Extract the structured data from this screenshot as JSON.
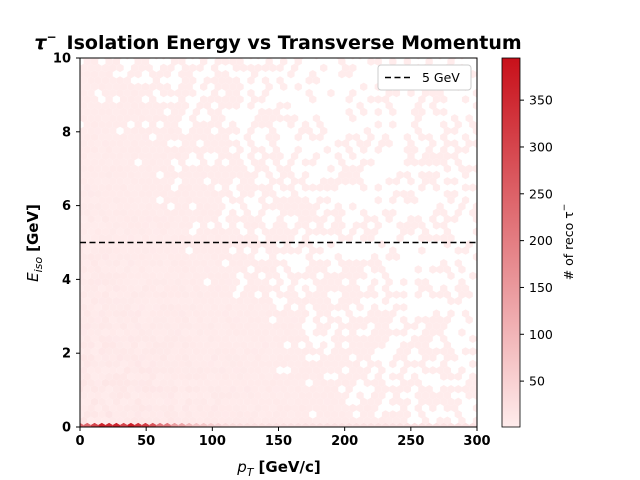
{
  "chart_data": {
    "type": "heatmap",
    "subtype": "hexbin",
    "title_symbol": "τ",
    "title_superscript": "−",
    "title_rest": "Isolation Energy vs Transverse Momentum",
    "xlabel_symbol": "p",
    "xlabel_subscript": "T",
    "xlabel_unit": "[GeV/c]",
    "ylabel_symbol": "E",
    "ylabel_subscript": "iso",
    "ylabel_unit": "[GeV]",
    "xlim": [
      0,
      300
    ],
    "ylim": [
      0,
      10
    ],
    "xticks": [
      0,
      50,
      100,
      150,
      200,
      250,
      300
    ],
    "yticks": [
      0,
      2,
      4,
      6,
      8,
      10
    ],
    "reference_line": {
      "y": 5,
      "style": "dashed",
      "color": "#000000",
      "label": "5 GeV"
    },
    "legend_position": "top-right",
    "colorbar": {
      "label": "# of reco τ",
      "label_superscript": "−",
      "min": 1,
      "max": 395,
      "ticks": [
        50,
        100,
        150,
        200,
        250,
        300,
        350
      ],
      "color_low": "#ffecec",
      "color_high": "#c8101a"
    },
    "density_description": [
      {
        "pt_range": [
          0,
          300
        ],
        "e_iso_range": [
          0,
          0.15
        ],
        "count_range": [
          20,
          395
        ],
        "peak_pt": 30
      },
      {
        "pt_range": [
          0,
          300
        ],
        "e_iso_range": [
          0.15,
          10
        ],
        "count_range": [
          1,
          15
        ]
      }
    ]
  }
}
